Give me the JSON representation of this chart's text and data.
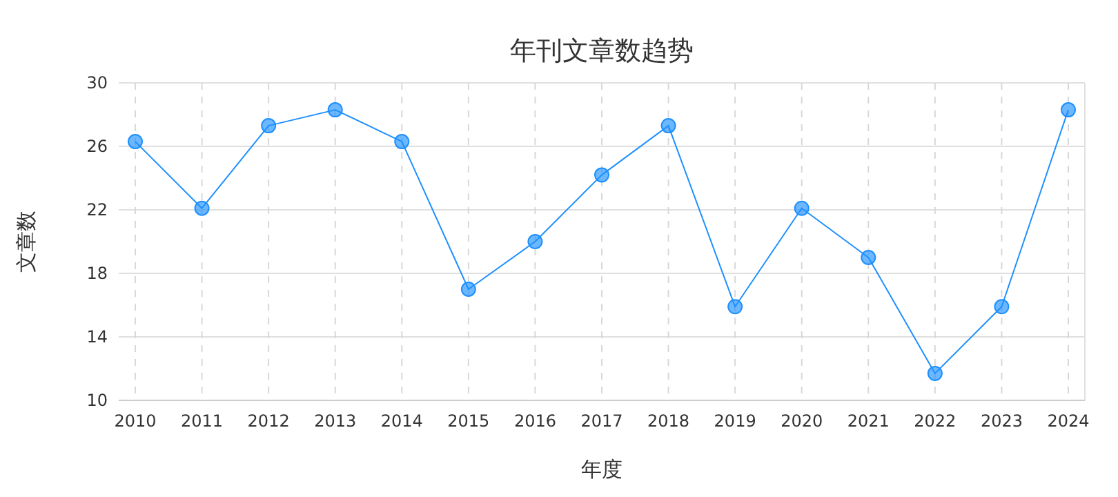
{
  "chart_data": {
    "type": "line",
    "title": "年刊文章数趋势",
    "xlabel": "年度",
    "ylabel": "文章数",
    "categories": [
      "2010",
      "2011",
      "2012",
      "2013",
      "2014",
      "2015",
      "2016",
      "2017",
      "2018",
      "2019",
      "2020",
      "2021",
      "2022",
      "2023",
      "2024"
    ],
    "series": [
      {
        "color": "#1e90ff",
        "values": [
          26.3,
          22.1,
          27.3,
          28.3,
          26.3,
          17,
          20,
          24.2,
          27.3,
          15.9,
          22.1,
          19,
          11.7,
          15.9,
          28.3
        ]
      }
    ],
    "ylim": [
      10,
      30
    ],
    "yticks": [
      10,
      14,
      18,
      22,
      26,
      30
    ],
    "grid": true,
    "marker": "circle",
    "line_style": "solid"
  }
}
